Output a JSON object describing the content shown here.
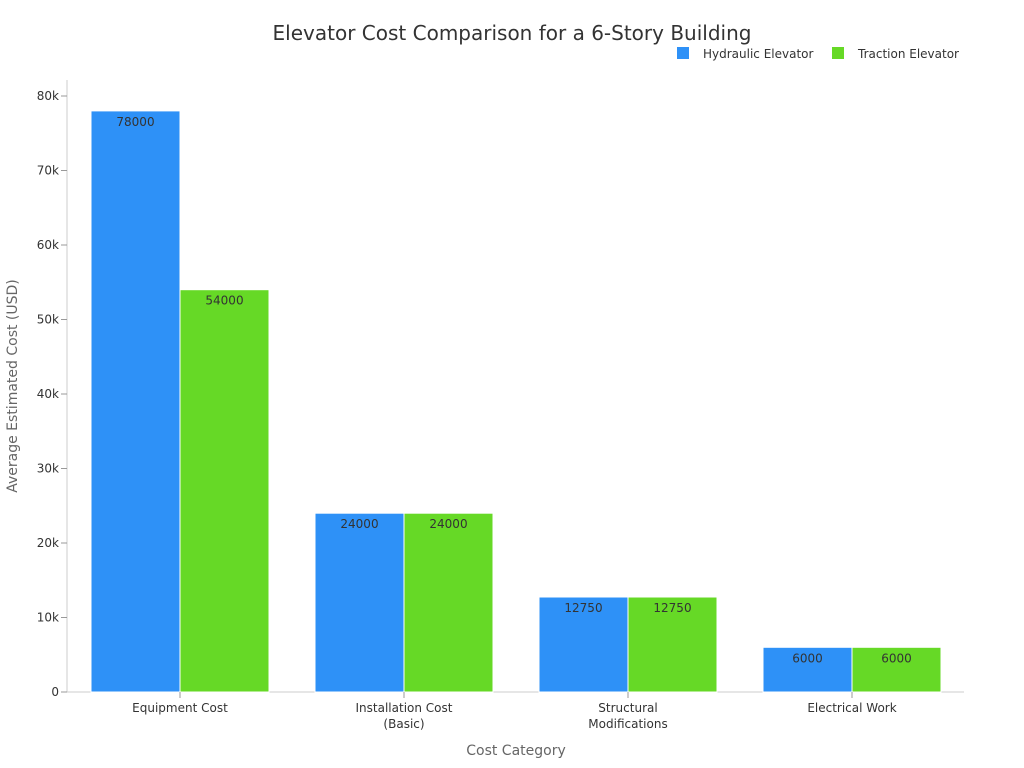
{
  "chart_data": {
    "type": "bar",
    "title": "Elevator Cost Comparison for a 6-Story Building",
    "xlabel": "Cost Category",
    "ylabel": "Average Estimated Cost (USD)",
    "categories": [
      [
        "Equipment Cost"
      ],
      [
        "Installation Cost",
        "(Basic)"
      ],
      [
        "Structural",
        "Modifications"
      ],
      [
        "Electrical Work"
      ]
    ],
    "series": [
      {
        "name": "Hydraulic Elevator",
        "color": "#2e91f7",
        "values": [
          78000,
          24000,
          12750,
          6000
        ]
      },
      {
        "name": "Traction Elevator",
        "color": "#66d926",
        "values": [
          54000,
          24000,
          12750,
          6000
        ]
      }
    ],
    "ylim": [
      0,
      82000
    ],
    "yticks": [
      0,
      10000,
      20000,
      30000,
      40000,
      50000,
      60000,
      70000,
      80000
    ],
    "ytick_labels": [
      "0",
      "10k",
      "20k",
      "30k",
      "40k",
      "50k",
      "60k",
      "70k",
      "80k"
    ],
    "legend_position": "top-right",
    "grid": false
  }
}
